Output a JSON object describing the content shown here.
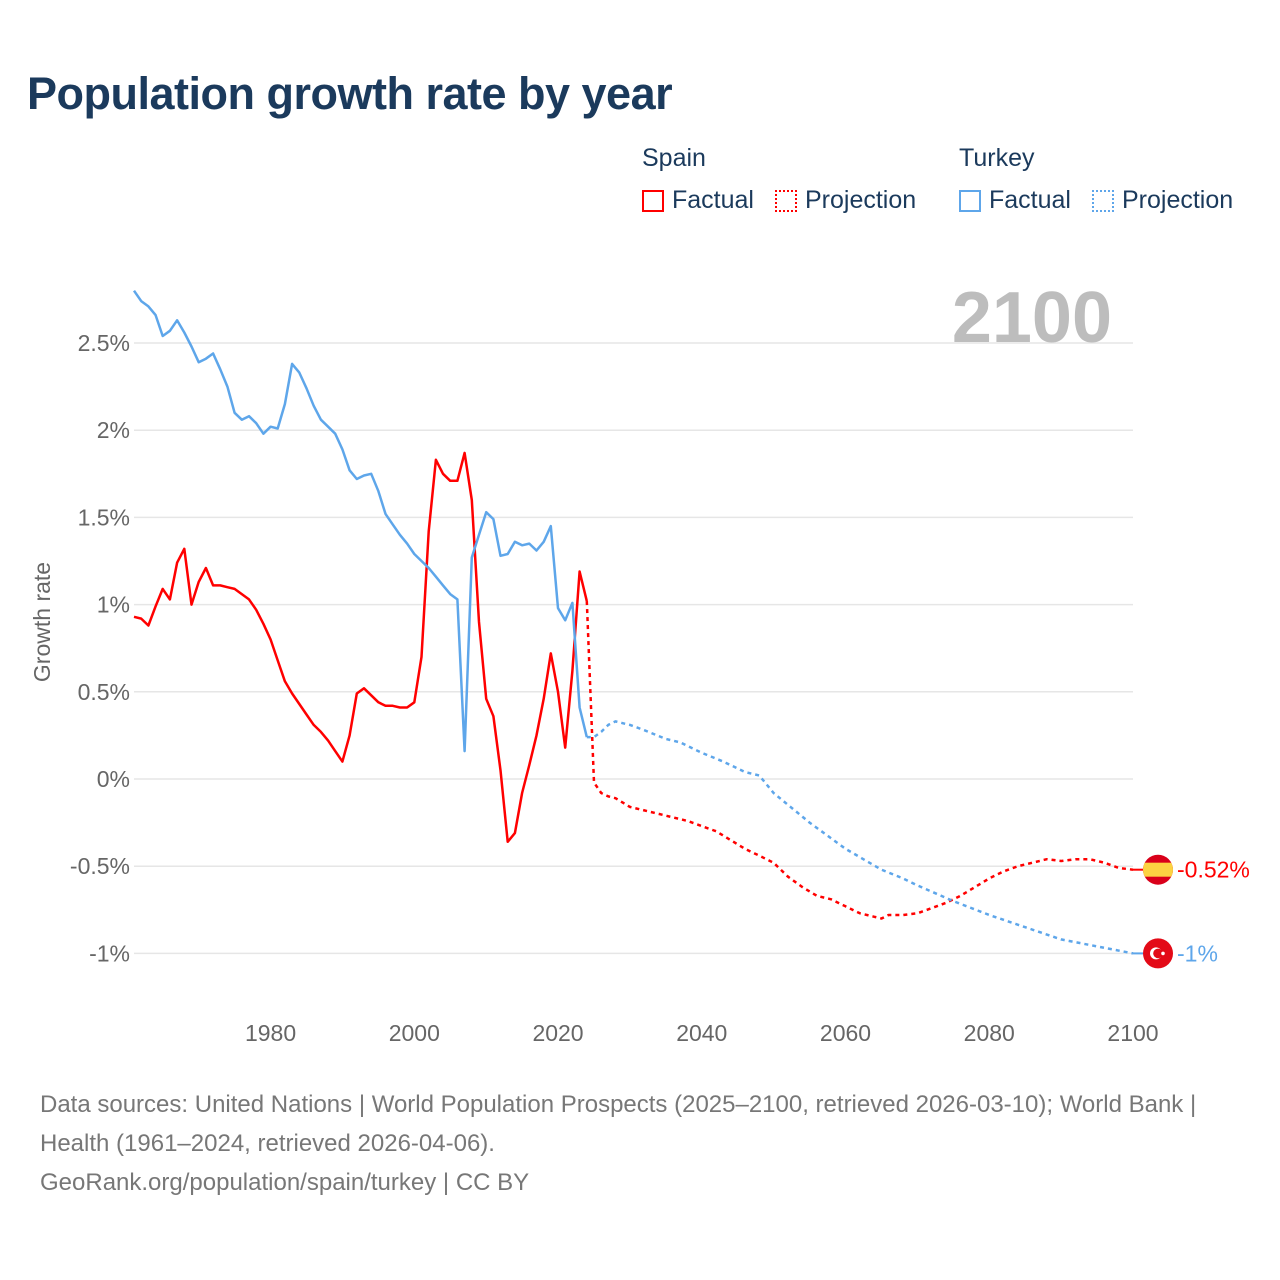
{
  "title": "Population growth rate by year",
  "legend": {
    "groups": [
      {
        "name": "Spain",
        "factual": "Factual",
        "projection": "Projection",
        "color": "#ff0000"
      },
      {
        "name": "Turkey",
        "factual": "Factual",
        "projection": "Projection",
        "color": "#5ea6ea"
      }
    ]
  },
  "year_label": "2100",
  "footer": {
    "sources": "Data sources: United Nations | World Population Prospects (2025–2100, retrieved 2026-03-10); World Bank | Health (1961–2024, retrieved 2026-04-06).",
    "credit": "GeoRank.org/population/spain/turkey | CC BY"
  },
  "chart_data": {
    "type": "line",
    "title": "Population growth rate by year",
    "xlabel": "",
    "ylabel": "Growth rate",
    "xlim": [
      1961,
      2100
    ],
    "ylim": [
      -1.25,
      2.9
    ],
    "x_ticks": [
      1980,
      2000,
      2020,
      2040,
      2060,
      2080,
      2100
    ],
    "x_tick_labels": [
      "1980",
      "2000",
      "2020",
      "2040",
      "2060",
      "2080",
      "2100"
    ],
    "y_ticks": [
      2.5,
      2,
      1.5,
      1,
      0.5,
      0,
      -0.5,
      -1
    ],
    "y_tick_labels": [
      "2.5%",
      "2%",
      "1.5%",
      "1%",
      "0.5%",
      "0%",
      "-0.5%",
      "-1%"
    ],
    "grid": true,
    "legend_position": "top-right",
    "series": [
      {
        "name": "Spain Factual",
        "country": "Spain",
        "kind": "factual",
        "color": "#ff0000",
        "x": [
          1961,
          1962,
          1963,
          1964,
          1965,
          1966,
          1967,
          1968,
          1969,
          1970,
          1971,
          1972,
          1973,
          1974,
          1975,
          1976,
          1977,
          1978,
          1979,
          1980,
          1981,
          1982,
          1983,
          1984,
          1985,
          1986,
          1987,
          1988,
          1989,
          1990,
          1991,
          1992,
          1993,
          1994,
          1995,
          1996,
          1997,
          1998,
          1999,
          2000,
          2001,
          2002,
          2003,
          2004,
          2005,
          2006,
          2007,
          2008,
          2009,
          2010,
          2011,
          2012,
          2013,
          2014,
          2015,
          2016,
          2017,
          2018,
          2019,
          2020,
          2021,
          2022,
          2023,
          2024
        ],
        "y": [
          0.93,
          0.92,
          0.88,
          0.99,
          1.09,
          1.03,
          1.24,
          1.32,
          1.0,
          1.13,
          1.21,
          1.11,
          1.11,
          1.1,
          1.09,
          1.06,
          1.03,
          0.97,
          0.89,
          0.8,
          0.68,
          0.56,
          0.49,
          0.43,
          0.37,
          0.31,
          0.27,
          0.22,
          0.16,
          0.1,
          0.25,
          0.49,
          0.52,
          0.48,
          0.44,
          0.42,
          0.42,
          0.41,
          0.41,
          0.44,
          0.7,
          1.42,
          1.83,
          1.75,
          1.71,
          1.71,
          1.87,
          1.6,
          0.9,
          0.46,
          0.36,
          0.05,
          -0.36,
          -0.31,
          -0.08,
          0.08,
          0.25,
          0.46,
          0.72,
          0.5,
          0.18,
          0.62,
          1.19,
          1.02
        ]
      },
      {
        "name": "Spain Projection",
        "country": "Spain",
        "kind": "projection",
        "color": "#ff0000",
        "x": [
          2024,
          2025,
          2026,
          2027,
          2028,
          2030,
          2032,
          2034,
          2036,
          2038,
          2040,
          2042,
          2044,
          2046,
          2048,
          2050,
          2052,
          2054,
          2056,
          2058,
          2060,
          2062,
          2064,
          2065,
          2066,
          2068,
          2070,
          2072,
          2074,
          2076,
          2078,
          2080,
          2082,
          2084,
          2086,
          2088,
          2090,
          2092,
          2094,
          2096,
          2098,
          2100
        ],
        "y": [
          1.02,
          -0.02,
          -0.08,
          -0.1,
          -0.11,
          -0.16,
          -0.18,
          -0.2,
          -0.22,
          -0.24,
          -0.27,
          -0.3,
          -0.35,
          -0.4,
          -0.44,
          -0.48,
          -0.56,
          -0.62,
          -0.67,
          -0.69,
          -0.73,
          -0.77,
          -0.79,
          -0.8,
          -0.78,
          -0.78,
          -0.77,
          -0.74,
          -0.71,
          -0.67,
          -0.62,
          -0.57,
          -0.53,
          -0.5,
          -0.48,
          -0.46,
          -0.47,
          -0.46,
          -0.46,
          -0.48,
          -0.51,
          -0.52
        ]
      },
      {
        "name": "Turkey Factual",
        "country": "Turkey",
        "kind": "factual",
        "color": "#5ea6ea",
        "x": [
          1961,
          1962,
          1963,
          1964,
          1965,
          1966,
          1967,
          1968,
          1969,
          1970,
          1971,
          1972,
          1973,
          1974,
          1975,
          1976,
          1977,
          1978,
          1979,
          1980,
          1981,
          1982,
          1983,
          1984,
          1985,
          1986,
          1987,
          1988,
          1989,
          1990,
          1991,
          1992,
          1993,
          1994,
          1995,
          1996,
          1997,
          1998,
          1999,
          2000,
          2001,
          2002,
          2003,
          2004,
          2005,
          2006,
          2007,
          2008,
          2009,
          2010,
          2011,
          2012,
          2013,
          2014,
          2015,
          2016,
          2017,
          2018,
          2019,
          2020,
          2021,
          2022,
          2023,
          2024
        ],
        "y": [
          2.8,
          2.74,
          2.71,
          2.66,
          2.54,
          2.57,
          2.63,
          2.56,
          2.48,
          2.39,
          2.41,
          2.44,
          2.35,
          2.25,
          2.1,
          2.06,
          2.08,
          2.04,
          1.98,
          2.02,
          2.01,
          2.15,
          2.38,
          2.33,
          2.24,
          2.14,
          2.06,
          2.02,
          1.98,
          1.89,
          1.77,
          1.72,
          1.74,
          1.75,
          1.65,
          1.52,
          1.46,
          1.4,
          1.35,
          1.29,
          1.25,
          1.21,
          1.16,
          1.11,
          1.06,
          1.03,
          0.16,
          1.27,
          1.4,
          1.53,
          1.49,
          1.28,
          1.29,
          1.36,
          1.34,
          1.35,
          1.31,
          1.36,
          1.45,
          0.98,
          0.91,
          1.01,
          0.41,
          0.24
        ]
      },
      {
        "name": "Turkey Projection",
        "country": "Turkey",
        "kind": "projection",
        "color": "#5ea6ea",
        "x": [
          2024,
          2025,
          2026,
          2027,
          2028,
          2029,
          2030,
          2032,
          2035,
          2037,
          2040,
          2043,
          2046,
          2048,
          2050,
          2055,
          2060,
          2065,
          2068,
          2070,
          2075,
          2080,
          2085,
          2090,
          2095,
          2100
        ],
        "y": [
          0.24,
          0.24,
          0.27,
          0.31,
          0.33,
          0.32,
          0.31,
          0.28,
          0.23,
          0.21,
          0.15,
          0.1,
          0.04,
          0.02,
          -0.08,
          -0.25,
          -0.4,
          -0.52,
          -0.57,
          -0.61,
          -0.7,
          -0.78,
          -0.85,
          -0.92,
          -0.96,
          -1.0
        ]
      }
    ],
    "end_labels": [
      {
        "country": "Spain",
        "value": -0.52,
        "text": "-0.52%",
        "color": "#ff0000"
      },
      {
        "country": "Turkey",
        "value": -1.0,
        "text": "-1%",
        "color": "#5ea6ea"
      }
    ]
  }
}
